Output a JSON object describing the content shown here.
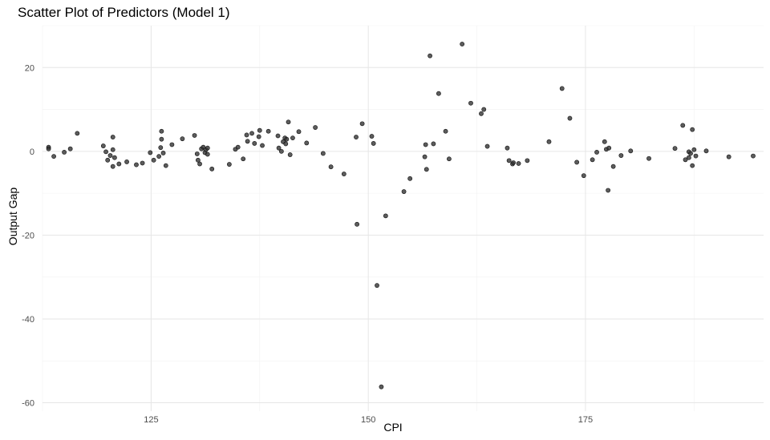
{
  "chart_data": {
    "type": "scatter",
    "title": "Scatter Plot of Predictors (Model 1)",
    "xlabel": "CPI",
    "ylabel": "Output Gap",
    "xlim": [
      112.5,
      195.5
    ],
    "ylim": [
      -62,
      30
    ],
    "xticks": [
      125,
      150,
      175
    ],
    "yticks": [
      -60,
      -40,
      -20,
      0,
      20
    ],
    "grid": true,
    "point_color": "#333333",
    "points": [
      {
        "x": 113.2,
        "y": 1.0
      },
      {
        "x": 113.2,
        "y": 0.6
      },
      {
        "x": 113.8,
        "y": -1.2
      },
      {
        "x": 115.0,
        "y": -0.2
      },
      {
        "x": 115.7,
        "y": 0.6
      },
      {
        "x": 116.5,
        "y": 4.3
      },
      {
        "x": 119.5,
        "y": 1.3
      },
      {
        "x": 119.8,
        "y": -0.1
      },
      {
        "x": 120.0,
        "y": -2.1
      },
      {
        "x": 120.3,
        "y": -1.0
      },
      {
        "x": 120.6,
        "y": 0.4
      },
      {
        "x": 120.6,
        "y": 3.4
      },
      {
        "x": 120.6,
        "y": -3.6
      },
      {
        "x": 120.8,
        "y": -1.5
      },
      {
        "x": 121.3,
        "y": -3.0
      },
      {
        "x": 122.2,
        "y": -2.5
      },
      {
        "x": 123.3,
        "y": -3.2
      },
      {
        "x": 124.0,
        "y": -2.8
      },
      {
        "x": 124.9,
        "y": -0.3
      },
      {
        "x": 125.3,
        "y": -2.1
      },
      {
        "x": 125.9,
        "y": -1.2
      },
      {
        "x": 126.1,
        "y": 0.9
      },
      {
        "x": 126.2,
        "y": 4.8
      },
      {
        "x": 126.2,
        "y": 2.9
      },
      {
        "x": 126.4,
        "y": -0.4
      },
      {
        "x": 126.7,
        "y": -3.4
      },
      {
        "x": 127.4,
        "y": 1.6
      },
      {
        "x": 128.6,
        "y": 3.0
      },
      {
        "x": 130.0,
        "y": 3.8
      },
      {
        "x": 130.3,
        "y": -0.6
      },
      {
        "x": 130.4,
        "y": -2.1
      },
      {
        "x": 130.6,
        "y": -3.0
      },
      {
        "x": 130.8,
        "y": 0.6
      },
      {
        "x": 131.0,
        "y": 1.0
      },
      {
        "x": 131.2,
        "y": -0.3
      },
      {
        "x": 131.3,
        "y": 0.4
      },
      {
        "x": 131.5,
        "y": -0.7
      },
      {
        "x": 131.5,
        "y": 0.8
      },
      {
        "x": 132.0,
        "y": -4.2
      },
      {
        "x": 134.0,
        "y": -3.1
      },
      {
        "x": 134.7,
        "y": 0.5
      },
      {
        "x": 135.0,
        "y": 1.0
      },
      {
        "x": 135.6,
        "y": -1.8
      },
      {
        "x": 136.0,
        "y": 3.9
      },
      {
        "x": 136.1,
        "y": 2.4
      },
      {
        "x": 136.6,
        "y": 4.3
      },
      {
        "x": 136.9,
        "y": 1.9
      },
      {
        "x": 137.4,
        "y": 3.5
      },
      {
        "x": 137.5,
        "y": 5.0
      },
      {
        "x": 137.8,
        "y": 1.4
      },
      {
        "x": 138.5,
        "y": 4.8
      },
      {
        "x": 139.6,
        "y": 3.7
      },
      {
        "x": 139.7,
        "y": 0.8
      },
      {
        "x": 140.0,
        "y": 0.0
      },
      {
        "x": 140.2,
        "y": 2.3
      },
      {
        "x": 140.4,
        "y": 3.2
      },
      {
        "x": 140.5,
        "y": 1.8
      },
      {
        "x": 140.6,
        "y": 2.9
      },
      {
        "x": 140.8,
        "y": 7.0
      },
      {
        "x": 141.0,
        "y": -0.8
      },
      {
        "x": 141.3,
        "y": 3.2
      },
      {
        "x": 142.0,
        "y": 4.7
      },
      {
        "x": 142.9,
        "y": 2.0
      },
      {
        "x": 143.9,
        "y": 5.7
      },
      {
        "x": 144.8,
        "y": -0.5
      },
      {
        "x": 145.7,
        "y": -3.7
      },
      {
        "x": 147.2,
        "y": -5.4
      },
      {
        "x": 148.6,
        "y": 3.4
      },
      {
        "x": 148.7,
        "y": -17.4
      },
      {
        "x": 149.3,
        "y": 6.6
      },
      {
        "x": 150.4,
        "y": 3.6
      },
      {
        "x": 150.6,
        "y": 1.9
      },
      {
        "x": 151.0,
        "y": -32.0
      },
      {
        "x": 151.5,
        "y": -56.2
      },
      {
        "x": 152.0,
        "y": -15.4
      },
      {
        "x": 154.1,
        "y": -9.6
      },
      {
        "x": 154.8,
        "y": -6.5
      },
      {
        "x": 156.5,
        "y": -1.3
      },
      {
        "x": 156.6,
        "y": 1.6
      },
      {
        "x": 156.7,
        "y": -4.3
      },
      {
        "x": 157.1,
        "y": 22.8
      },
      {
        "x": 157.5,
        "y": 1.8
      },
      {
        "x": 158.1,
        "y": 13.8
      },
      {
        "x": 158.9,
        "y": 4.8
      },
      {
        "x": 159.3,
        "y": -1.8
      },
      {
        "x": 160.8,
        "y": 25.6
      },
      {
        "x": 161.8,
        "y": 11.5
      },
      {
        "x": 163.0,
        "y": 9.0
      },
      {
        "x": 163.3,
        "y": 10.0
      },
      {
        "x": 163.7,
        "y": 1.2
      },
      {
        "x": 166.0,
        "y": 0.8
      },
      {
        "x": 166.2,
        "y": -2.2
      },
      {
        "x": 166.6,
        "y": -3.0
      },
      {
        "x": 166.7,
        "y": -2.7
      },
      {
        "x": 167.3,
        "y": -2.9
      },
      {
        "x": 168.3,
        "y": -2.2
      },
      {
        "x": 170.8,
        "y": 2.3
      },
      {
        "x": 172.3,
        "y": 15.0
      },
      {
        "x": 173.2,
        "y": 7.9
      },
      {
        "x": 174.0,
        "y": -2.6
      },
      {
        "x": 174.8,
        "y": -5.8
      },
      {
        "x": 175.8,
        "y": -2.0
      },
      {
        "x": 176.3,
        "y": -0.2
      },
      {
        "x": 177.2,
        "y": 2.3
      },
      {
        "x": 177.4,
        "y": 0.5
      },
      {
        "x": 177.6,
        "y": -9.3
      },
      {
        "x": 177.7,
        "y": 0.8
      },
      {
        "x": 178.2,
        "y": -3.6
      },
      {
        "x": 179.1,
        "y": -1.0
      },
      {
        "x": 180.2,
        "y": 0.1
      },
      {
        "x": 182.3,
        "y": -1.7
      },
      {
        "x": 185.3,
        "y": 0.7
      },
      {
        "x": 186.2,
        "y": 6.2
      },
      {
        "x": 186.5,
        "y": -2.0
      },
      {
        "x": 186.9,
        "y": -0.1
      },
      {
        "x": 186.9,
        "y": -1.5
      },
      {
        "x": 187.1,
        "y": -0.5
      },
      {
        "x": 187.3,
        "y": 5.2
      },
      {
        "x": 187.3,
        "y": -3.4
      },
      {
        "x": 187.5,
        "y": 0.4
      },
      {
        "x": 187.7,
        "y": -1.1
      },
      {
        "x": 188.9,
        "y": 0.1
      },
      {
        "x": 191.5,
        "y": -1.3
      },
      {
        "x": 194.3,
        "y": -1.1
      }
    ]
  }
}
